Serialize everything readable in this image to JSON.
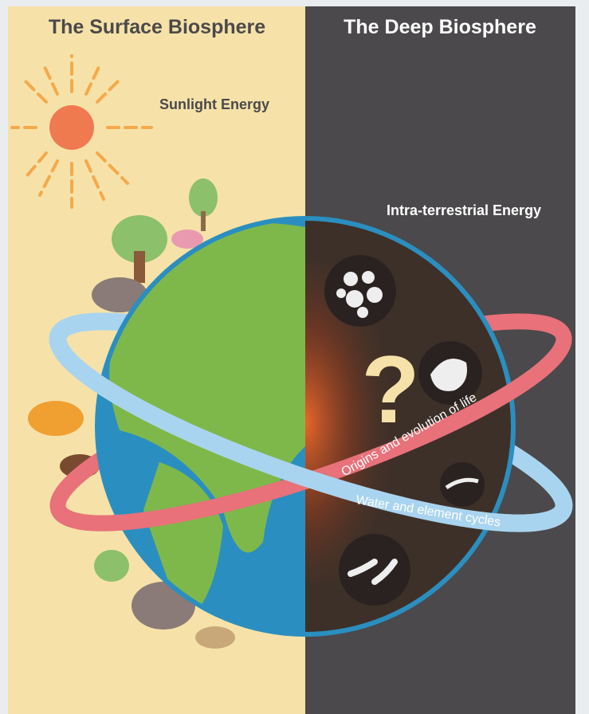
{
  "header": {
    "left_title": "The Surface Biosphere",
    "right_title": "The Deep Biosphere"
  },
  "labels": {
    "sunlight": "Sunlight Energy",
    "intra": "Intra-terrestrial Energy"
  },
  "globe": {
    "question": "?"
  },
  "rings": [
    {
      "label": "Origins and evolution of life"
    },
    {
      "label": "Water and element cycles"
    }
  ]
}
